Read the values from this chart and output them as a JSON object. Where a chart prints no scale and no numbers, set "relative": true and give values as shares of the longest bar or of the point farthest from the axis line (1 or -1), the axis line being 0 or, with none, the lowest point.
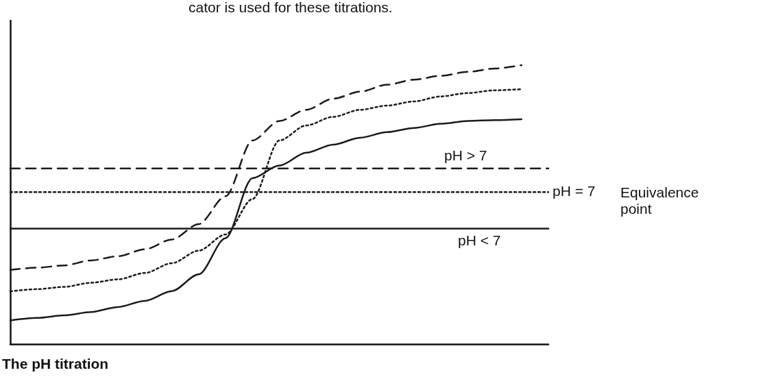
{
  "chart_data": {
    "type": "line",
    "relative": true,
    "grid": false,
    "marker": "none",
    "categories": [
      null,
      null,
      null,
      null,
      null,
      null,
      null,
      null,
      null,
      null,
      null,
      null,
      null,
      null,
      null,
      null,
      null,
      null,
      null,
      null,
      null
    ],
    "series": [
      {
        "color": "#1a1a1a",
        "line_style": "solid",
        "values": [
          0.085,
          0.094,
          0.103,
          0.115,
          0.133,
          0.155,
          0.19,
          0.25,
          0.38,
          0.595,
          0.64,
          0.686,
          0.715,
          0.74,
          0.76,
          0.775,
          0.79,
          0.8,
          0.803,
          0.806,
          null
        ]
      },
      {
        "color": "#1a1a1a",
        "line_style": "dotted",
        "values": [
          0.189,
          0.197,
          0.205,
          0.22,
          0.232,
          0.255,
          0.29,
          0.335,
          0.393,
          0.52,
          0.73,
          0.784,
          0.815,
          0.84,
          0.855,
          0.87,
          0.888,
          0.9,
          0.91,
          0.914,
          null
        ]
      },
      {
        "color": "#1a1a1a",
        "line_style": "dashed",
        "values": [
          0.266,
          0.274,
          0.282,
          0.3,
          0.315,
          0.34,
          0.375,
          0.43,
          0.53,
          0.73,
          0.8,
          0.84,
          0.88,
          0.905,
          0.93,
          0.948,
          0.962,
          0.976,
          0.988,
          1,
          null
        ]
      },
      {
        "color": "#1a1a1a",
        "line_style": "dashed",
        "values": [
          0.63,
          0.63,
          0.63,
          0.63,
          0.63,
          0.63,
          0.63,
          0.63,
          0.63,
          0.63,
          0.63,
          0.63,
          0.63,
          0.63,
          0.63,
          0.63,
          0.63,
          0.63,
          0.63,
          0.63,
          0.63
        ]
      },
      {
        "color": "#1a1a1a",
        "line_style": "dotted",
        "values": [
          0.545,
          0.545,
          0.545,
          0.545,
          0.545,
          0.545,
          0.545,
          0.545,
          0.545,
          0.545,
          0.545,
          0.545,
          0.545,
          0.545,
          0.545,
          0.545,
          0.545,
          0.545,
          0.545,
          0.545,
          0.545
        ]
      },
      {
        "color": "#1a1a1a",
        "line_style": "solid",
        "values": [
          0.414,
          0.414,
          0.414,
          0.414,
          0.414,
          0.414,
          0.414,
          0.414,
          0.414,
          0.414,
          0.414,
          0.414,
          0.414,
          0.414,
          0.414,
          0.414,
          0.414,
          0.414,
          0.414,
          0.414,
          0.414
        ]
      }
    ],
    "annotations": [
      "pH > 7",
      "pH = 7",
      "Equivalence point",
      "pH < 7",
      "cator is used for these titrations.",
      "The pH titration"
    ]
  }
}
